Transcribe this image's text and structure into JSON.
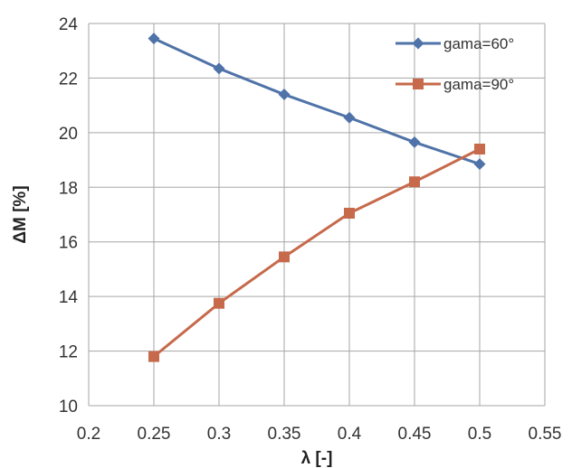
{
  "chart_data": {
    "type": "line",
    "xlabel": "λ [-]",
    "ylabel": "ΔM [%]",
    "xlim": [
      0.2,
      0.55
    ],
    "ylim": [
      10,
      24
    ],
    "xticks": [
      0.2,
      0.25,
      0.3,
      0.35,
      0.4,
      0.45,
      0.5,
      0.55
    ],
    "yticks": [
      10,
      12,
      14,
      16,
      18,
      20,
      22,
      24
    ],
    "xtick_labels": [
      "0.2",
      "0.25",
      "0.3",
      "0.35",
      "0.4",
      "0.45",
      "0.5",
      "0.55"
    ],
    "ytick_labels": [
      "10",
      "12",
      "14",
      "16",
      "18",
      "20",
      "22",
      "24"
    ],
    "grid": true,
    "legend_position": "top-right",
    "series": [
      {
        "name": "gama=60°",
        "color": "#4f73a8",
        "marker": "diamond",
        "x": [
          0.25,
          0.3,
          0.35,
          0.4,
          0.45,
          0.5
        ],
        "y": [
          23.45,
          22.35,
          21.4,
          20.55,
          19.65,
          18.85
        ]
      },
      {
        "name": "gama=90°",
        "color": "#c66a4b",
        "marker": "square",
        "x": [
          0.25,
          0.3,
          0.35,
          0.4,
          0.45,
          0.5
        ],
        "y": [
          11.8,
          13.75,
          15.45,
          17.05,
          18.2,
          19.4
        ]
      }
    ]
  }
}
